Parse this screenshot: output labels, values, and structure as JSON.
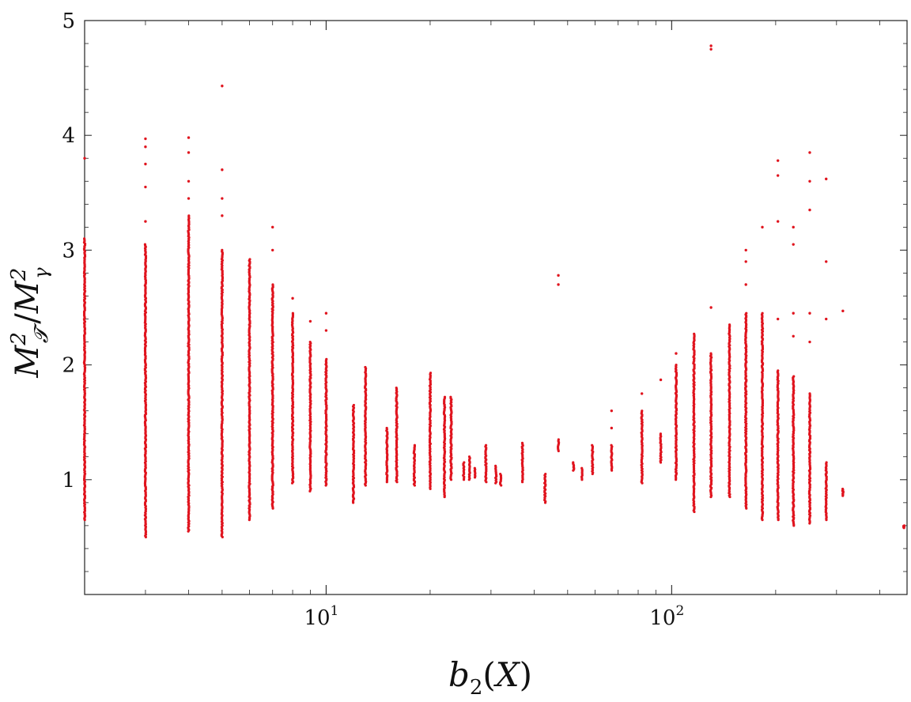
{
  "chart_data": {
    "type": "scatter",
    "title": "",
    "xlabel": "b_2(X)",
    "ylabel": "M_T^2 / M_gamma^2",
    "x_scale": "log",
    "xlim": [
      2,
      480
    ],
    "ylim": [
      0,
      5
    ],
    "grid": false,
    "legend": "none",
    "marker_color": "#e0141e",
    "y_ticks": [
      1,
      2,
      3,
      4,
      5
    ],
    "x_major_ticks": [
      10,
      100
    ],
    "x_tick_labels": [
      {
        "value": 10,
        "base": "10",
        "exp": "1"
      },
      {
        "value": 100,
        "base": "10",
        "exp": "2"
      }
    ],
    "point_columns": [
      {
        "x": 2,
        "ymin": 0.65,
        "ymax": 3.1,
        "outliers": [
          3.8
        ]
      },
      {
        "x": 3,
        "ymin": 0.5,
        "ymax": 3.05,
        "outliers": [
          3.25,
          3.55,
          3.75,
          3.9,
          3.97
        ]
      },
      {
        "x": 4,
        "ymin": 0.55,
        "ymax": 3.3,
        "outliers": [
          3.45,
          3.6,
          3.85,
          3.98
        ]
      },
      {
        "x": 5,
        "ymin": 0.5,
        "ymax": 3.0,
        "outliers": [
          3.3,
          3.45,
          3.7,
          4.43
        ]
      },
      {
        "x": 6,
        "ymin": 0.65,
        "ymax": 2.92,
        "outliers": []
      },
      {
        "x": 7,
        "ymin": 0.75,
        "ymax": 2.7,
        "outliers": [
          3.0,
          3.2
        ]
      },
      {
        "x": 8,
        "ymin": 0.97,
        "ymax": 2.45,
        "outliers": [
          2.58
        ]
      },
      {
        "x": 9,
        "ymin": 0.9,
        "ymax": 2.2,
        "outliers": [
          2.38
        ]
      },
      {
        "x": 10,
        "ymin": 0.95,
        "ymax": 2.05,
        "outliers": [
          2.3,
          2.45
        ]
      },
      {
        "x": 12,
        "ymin": 0.8,
        "ymax": 1.65,
        "outliers": []
      },
      {
        "x": 13,
        "ymin": 0.95,
        "ymax": 1.98,
        "outliers": []
      },
      {
        "x": 15,
        "ymin": 0.98,
        "ymax": 1.45,
        "outliers": []
      },
      {
        "x": 16,
        "ymin": 0.98,
        "ymax": 1.8,
        "outliers": []
      },
      {
        "x": 18,
        "ymin": 0.95,
        "ymax": 1.3,
        "outliers": []
      },
      {
        "x": 20,
        "ymin": 0.92,
        "ymax": 1.93,
        "outliers": []
      },
      {
        "x": 22,
        "ymin": 0.85,
        "ymax": 1.72,
        "outliers": []
      },
      {
        "x": 23,
        "ymin": 1.0,
        "ymax": 1.72,
        "outliers": []
      },
      {
        "x": 25,
        "ymin": 1.0,
        "ymax": 1.15,
        "outliers": []
      },
      {
        "x": 26,
        "ymin": 1.0,
        "ymax": 1.2,
        "outliers": []
      },
      {
        "x": 27,
        "ymin": 1.02,
        "ymax": 1.1,
        "outliers": []
      },
      {
        "x": 29,
        "ymin": 0.98,
        "ymax": 1.3,
        "outliers": []
      },
      {
        "x": 31,
        "ymin": 0.97,
        "ymax": 1.12,
        "outliers": []
      },
      {
        "x": 32,
        "ymin": 0.95,
        "ymax": 1.05,
        "outliers": []
      },
      {
        "x": 37,
        "ymin": 0.98,
        "ymax": 1.32,
        "outliers": []
      },
      {
        "x": 43,
        "ymin": 0.8,
        "ymax": 1.05,
        "outliers": []
      },
      {
        "x": 47,
        "ymin": 1.25,
        "ymax": 1.35,
        "outliers": [
          2.7,
          2.78
        ]
      },
      {
        "x": 52,
        "ymin": 1.08,
        "ymax": 1.15,
        "outliers": []
      },
      {
        "x": 55,
        "ymin": 1.0,
        "ymax": 1.1,
        "outliers": []
      },
      {
        "x": 59,
        "ymin": 1.05,
        "ymax": 1.3,
        "outliers": []
      },
      {
        "x": 67,
        "ymin": 1.08,
        "ymax": 1.3,
        "outliers": [
          1.45,
          1.6
        ]
      },
      {
        "x": 82,
        "ymin": 0.97,
        "ymax": 1.6,
        "outliers": [
          1.75
        ]
      },
      {
        "x": 93,
        "ymin": 1.15,
        "ymax": 1.4,
        "outliers": [
          1.87
        ]
      },
      {
        "x": 103,
        "ymin": 1.0,
        "ymax": 2.0,
        "outliers": [
          2.1
        ]
      },
      {
        "x": 116,
        "ymin": 0.72,
        "ymax": 2.27,
        "outliers": []
      },
      {
        "x": 130,
        "ymin": 0.85,
        "ymax": 2.1,
        "outliers": [
          2.5,
          4.75,
          4.78
        ]
      },
      {
        "x": 147,
        "ymin": 0.85,
        "ymax": 2.35,
        "outliers": []
      },
      {
        "x": 164,
        "ymin": 0.75,
        "ymax": 2.45,
        "outliers": [
          2.7,
          2.9,
          3.0
        ]
      },
      {
        "x": 183,
        "ymin": 0.65,
        "ymax": 2.45,
        "outliers": [
          3.2
        ]
      },
      {
        "x": 203,
        "ymin": 0.65,
        "ymax": 1.95,
        "outliers": [
          2.4,
          3.25,
          3.65,
          3.78
        ]
      },
      {
        "x": 225,
        "ymin": 0.6,
        "ymax": 1.9,
        "outliers": [
          2.25,
          2.45,
          3.05,
          3.2
        ]
      },
      {
        "x": 251,
        "ymin": 0.62,
        "ymax": 1.75,
        "outliers": [
          2.2,
          2.45,
          3.35,
          3.6,
          3.85
        ]
      },
      {
        "x": 280,
        "ymin": 0.65,
        "ymax": 1.15,
        "outliers": [
          2.4,
          2.9,
          3.62
        ]
      },
      {
        "x": 313,
        "ymin": 0.86,
        "ymax": 0.92,
        "outliers": [
          2.47
        ]
      },
      {
        "x": 470,
        "ymin": 0.58,
        "ymax": 0.6,
        "outliers": []
      }
    ]
  }
}
